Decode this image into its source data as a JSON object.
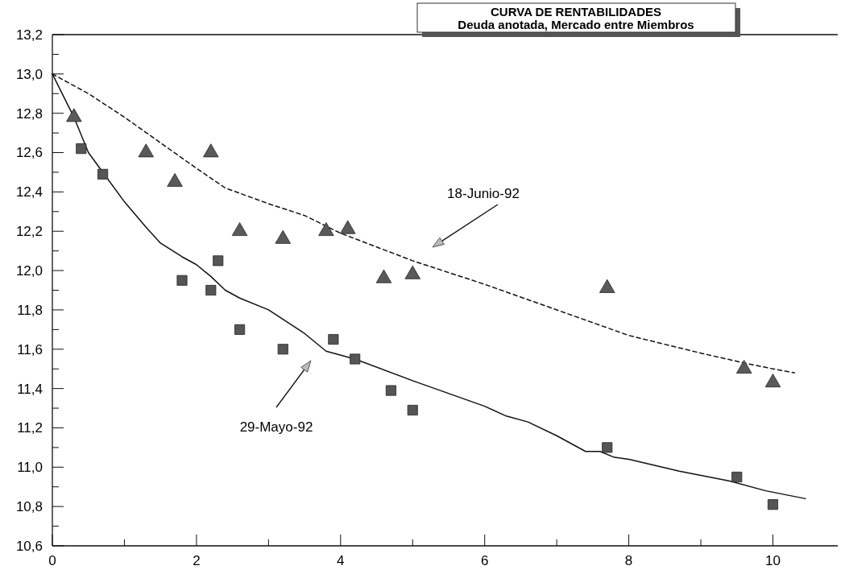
{
  "chart_data": {
    "type": "scatter",
    "title": "CURVA DE RENTABILIDADES",
    "subtitle": "Deuda anotada, Mercado entre Miembros",
    "xlim": [
      0,
      10.9
    ],
    "ylim": [
      10.6,
      13.2
    ],
    "xticks": [
      0,
      {
        "value": 1,
        "label": null
      },
      2,
      {
        "value": 3,
        "label": null
      },
      4,
      {
        "value": 5,
        "label": null
      },
      6,
      {
        "value": 7,
        "label": null
      },
      8,
      {
        "value": 9,
        "label": null
      },
      10
    ],
    "yticks": [
      {
        "value": 10.6,
        "label": "10,6"
      },
      {
        "value": 10.7,
        "label": null
      },
      {
        "value": 10.8,
        "label": "10,8"
      },
      {
        "value": 10.9,
        "label": null
      },
      {
        "value": 11.0,
        "label": "11,0"
      },
      {
        "value": 11.1,
        "label": null
      },
      {
        "value": 11.2,
        "label": "11,2"
      },
      {
        "value": 11.3,
        "label": null
      },
      {
        "value": 11.4,
        "label": "11,4"
      },
      {
        "value": 11.5,
        "label": null
      },
      {
        "value": 11.6,
        "label": "11,6"
      },
      {
        "value": 11.7,
        "label": null
      },
      {
        "value": 11.8,
        "label": "11,8"
      },
      {
        "value": 11.9,
        "label": null
      },
      {
        "value": 12.0,
        "label": "12,0"
      },
      {
        "value": 12.1,
        "label": null
      },
      {
        "value": 12.2,
        "label": "12,2"
      },
      {
        "value": 12.3,
        "label": null
      },
      {
        "value": 12.4,
        "label": "12,4"
      },
      {
        "value": 12.5,
        "label": null
      },
      {
        "value": 12.6,
        "label": "12,6"
      },
      {
        "value": 12.7,
        "label": null
      },
      {
        "value": 12.8,
        "label": "12,8"
      },
      {
        "value": 12.9,
        "label": null
      },
      {
        "value": 13.0,
        "label": "13,0"
      },
      {
        "value": 13.1,
        "label": null
      },
      {
        "value": 13.2,
        "label": "13,2"
      }
    ],
    "grid": false,
    "series": [
      {
        "type": "line",
        "line_style": "solid",
        "marker": "none",
        "color": "#111111",
        "x": [
          0,
          0.3,
          0.5,
          0.7,
          1.0,
          1.3,
          1.5,
          1.8,
          2.0,
          2.2,
          2.4,
          2.6,
          3.0,
          3.5,
          3.8,
          4.2,
          5.0,
          6.0,
          6.3,
          6.6,
          7.0,
          7.4,
          7.6,
          7.8,
          8.0,
          8.7,
          9.4,
          9.9,
          10.45
        ],
        "values": [
          13.0,
          12.78,
          12.6,
          12.5,
          12.35,
          12.22,
          12.14,
          12.07,
          12.03,
          11.97,
          11.9,
          11.86,
          11.8,
          11.68,
          11.59,
          11.55,
          11.44,
          11.31,
          11.26,
          11.23,
          11.16,
          11.08,
          11.08,
          11.05,
          11.04,
          10.98,
          10.93,
          10.88,
          10.84
        ]
      },
      {
        "type": "line",
        "line_style": "dashed",
        "marker": "none",
        "color": "#111111",
        "x": [
          0,
          0.5,
          1.0,
          1.5,
          2.0,
          2.4,
          3.0,
          3.5,
          4.0,
          4.5,
          5.0,
          6.0,
          7.0,
          8.0,
          9.0,
          9.6,
          10.0,
          10.3
        ],
        "values": [
          13.0,
          12.9,
          12.78,
          12.65,
          12.52,
          12.42,
          12.34,
          12.28,
          12.19,
          12.12,
          12.05,
          11.93,
          11.8,
          11.67,
          11.58,
          11.53,
          11.5,
          11.48
        ]
      },
      {
        "marker": "triangle",
        "color": "#5a5a5a",
        "x": [
          0.3,
          1.3,
          1.7,
          2.2,
          2.6,
          3.2,
          3.8,
          4.1,
          4.6,
          5.0,
          7.7,
          9.6,
          10.0
        ],
        "values": [
          12.78,
          12.6,
          12.45,
          12.6,
          12.2,
          12.16,
          12.2,
          12.21,
          11.96,
          11.98,
          11.91,
          11.5,
          11.43
        ]
      },
      {
        "marker": "square",
        "color": "#555555",
        "x": [
          0.4,
          0.7,
          1.8,
          2.2,
          2.3,
          2.6,
          3.2,
          3.9,
          4.2,
          4.7,
          5.0,
          7.7,
          9.5,
          10.0
        ],
        "values": [
          12.62,
          12.49,
          11.95,
          11.9,
          12.05,
          11.7,
          11.6,
          11.65,
          11.55,
          11.39,
          11.29,
          11.1,
          10.95,
          10.81
        ]
      }
    ],
    "annotations": [
      "18-Junio-92",
      "29-Mayo-92"
    ]
  }
}
